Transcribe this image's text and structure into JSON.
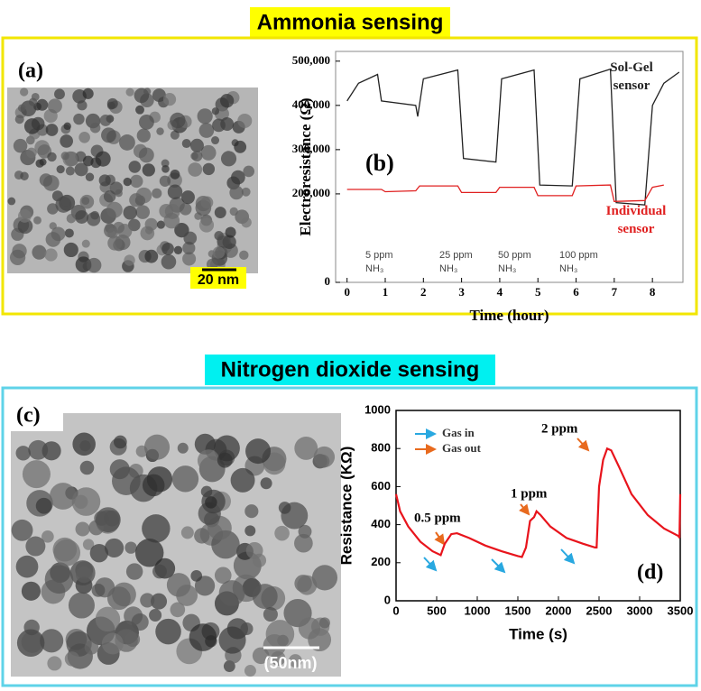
{
  "sections": [
    {
      "title": "Ammonia sensing"
    },
    {
      "title": "Nitrogen dioxide sensing"
    }
  ],
  "images": [
    {
      "label": "(a)",
      "scale_bar": "20 nm"
    },
    {
      "label": "(c)",
      "scale_bar": "(50nm)"
    }
  ],
  "chart_data": [
    {
      "type": "line",
      "panel_label": "(b)",
      "x_label": "Time (hour)",
      "y_label": "Electroresistance (Ω)",
      "xlim": [
        -0.3,
        8.8
      ],
      "xticks": [
        0,
        1,
        2,
        3,
        4,
        5,
        6,
        7,
        8
      ],
      "ylim": [
        0,
        522000
      ],
      "yticks": [
        0,
        {
          "value": 200000,
          "label": "200,000"
        },
        {
          "value": 300000,
          "label": "300,000"
        },
        {
          "value": 400000,
          "label": "400,000"
        },
        {
          "value": 500000,
          "label": "500,000"
        }
      ],
      "series": [
        {
          "name": "Sol-Gel sensor",
          "color": "#222222",
          "x": [
            0,
            0.3,
            0.8,
            0.9,
            1.8,
            1.85,
            2.0,
            2.9,
            3.05,
            3.9,
            4.05,
            4.9,
            5.05,
            5.9,
            6.1,
            6.9,
            7.05,
            7.8,
            8.0,
            8.3,
            8.7
          ],
          "values": [
            410000,
            450000,
            470000,
            410000,
            400000,
            375000,
            460000,
            480000,
            280000,
            272000,
            460000,
            480000,
            220000,
            218000,
            460000,
            482000,
            180000,
            175000,
            400000,
            450000,
            475000
          ]
        },
        {
          "name": "Individual sensor",
          "color": "#e02020",
          "x": [
            0,
            0.9,
            1.0,
            1.8,
            1.9,
            2.9,
            3.0,
            3.9,
            4.0,
            4.9,
            5.0,
            5.9,
            6.0,
            6.9,
            7.0,
            7.8,
            8.0,
            8.3
          ],
          "values": [
            210000,
            210000,
            205000,
            207000,
            218000,
            218000,
            203000,
            203000,
            215000,
            215000,
            196000,
            196000,
            218000,
            220000,
            183000,
            185000,
            215000,
            220000
          ]
        }
      ],
      "annotations": [
        {
          "text": "5 ppm",
          "gas": "NH₃"
        },
        {
          "text": "25 ppm",
          "gas": "NH₃"
        },
        {
          "text": "50 ppm",
          "gas": "NH₃"
        },
        {
          "text": "100 ppm",
          "gas": "NH₃"
        }
      ]
    },
    {
      "type": "line",
      "panel_label": "(d)",
      "x_label": "Time (s)",
      "y_label": "Resistance (KΩ)",
      "xlim": [
        0,
        3500
      ],
      "xticks": [
        0,
        500,
        1000,
        1500,
        2000,
        2500,
        3000,
        3500
      ],
      "ylim": [
        0,
        1000
      ],
      "yticks": [
        0,
        200,
        400,
        600,
        800,
        1000
      ],
      "series": [
        {
          "color": "#e8141c",
          "x": [
            0,
            50,
            150,
            300,
            450,
            550,
            600,
            680,
            750,
            900,
            1100,
            1300,
            1500,
            1550,
            1600,
            1650,
            1700,
            1730,
            1780,
            1900,
            2100,
            2300,
            2450,
            2470,
            2500,
            2550,
            2600,
            2650,
            2750,
            2900,
            3100,
            3300,
            3480,
            3490,
            3500
          ],
          "values": [
            560,
            470,
            390,
            310,
            260,
            240,
            300,
            350,
            355,
            330,
            290,
            260,
            235,
            230,
            280,
            420,
            440,
            470,
            450,
            390,
            330,
            300,
            280,
            280,
            600,
            740,
            800,
            790,
            700,
            560,
            450,
            380,
            340,
            330,
            560
          ]
        }
      ],
      "arrow_legend": [
        {
          "name": "Gas in",
          "color": "#29a8e0"
        },
        {
          "name": "Gas out",
          "color": "#e86a1e"
        }
      ],
      "annotations": [
        {
          "text": "0.5 ppm"
        },
        {
          "text": "1 ppm"
        },
        {
          "text": "2 ppm"
        }
      ]
    }
  ]
}
